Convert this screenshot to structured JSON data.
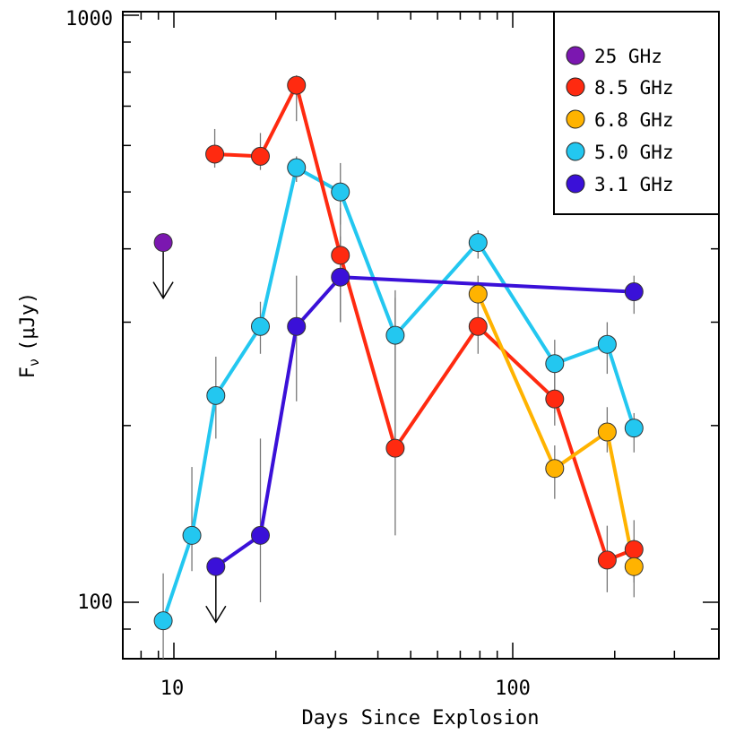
{
  "chart_data": {
    "type": "line",
    "xscale": "log",
    "yscale": "log",
    "xlabel": "Days Since Explosion",
    "ylabel_main": "F",
    "ylabel_sub": "ν",
    "ylabel_unit": "(μJy)",
    "xlim": [
      7.8,
      400
    ],
    "ylim": [
      85,
      1000
    ],
    "x_tick_labels": [
      {
        "value": 10,
        "label": "10"
      },
      {
        "value": 100,
        "label": "100"
      }
    ],
    "y_tick_labels": [
      {
        "value": 100,
        "label": "100"
      },
      {
        "value": 1000,
        "label": "1000"
      }
    ],
    "series": [
      {
        "name": "25 GHz",
        "legend_label": "25  GHz",
        "color": "#7b17b0",
        "connect": false,
        "points": [
          {
            "x": 9.3,
            "y": 410,
            "upper_limit": true
          }
        ]
      },
      {
        "name": "8.5 GHz",
        "legend_label": "8.5 GHz",
        "color": "#ff2a10",
        "connect": true,
        "points": [
          {
            "x": 13.2,
            "y": 580,
            "err_lo": 550,
            "err_hi": 640
          },
          {
            "x": 18.0,
            "y": 575,
            "err_lo": 545,
            "err_hi": 630
          },
          {
            "x": 23.0,
            "y": 760,
            "err_lo": 660,
            "err_hi": 790
          },
          {
            "x": 31.0,
            "y": 390,
            "err_lo": 300,
            "err_hi": 470
          },
          {
            "x": 45.0,
            "y": 183,
            "err_lo": 130,
            "err_hi": 340
          },
          {
            "x": 79.0,
            "y": 295,
            "err_lo": 265,
            "err_hi": 325
          },
          {
            "x": 133.0,
            "y": 222,
            "err_lo": 200,
            "err_hi": 248
          },
          {
            "x": 190.0,
            "y": 118,
            "err_lo": 104,
            "err_hi": 135
          },
          {
            "x": 228.0,
            "y": 123,
            "err_lo": 108,
            "err_hi": 138
          }
        ]
      },
      {
        "name": "6.8 GHz",
        "legend_label": "6.8 GHz",
        "color": "#ffb300",
        "connect": true,
        "points": [
          {
            "x": 79.0,
            "y": 335,
            "err_lo": 310,
            "err_hi": 360
          },
          {
            "x": 133.0,
            "y": 169,
            "err_lo": 150,
            "err_hi": 185
          },
          {
            "x": 190.0,
            "y": 195,
            "err_lo": 180,
            "err_hi": 215
          },
          {
            "x": 228.0,
            "y": 115,
            "err_lo": 102,
            "err_hi": 128
          }
        ]
      },
      {
        "name": "5.0 GHz",
        "legend_label": "5.0 GHz",
        "color": "#23c7f0",
        "connect": true,
        "points": [
          {
            "x": 9.3,
            "y": 93,
            "err_lo": 78,
            "err_hi": 112
          },
          {
            "x": 11.3,
            "y": 130,
            "err_lo": 113,
            "err_hi": 170
          },
          {
            "x": 13.3,
            "y": 225,
            "err_lo": 190,
            "err_hi": 262
          },
          {
            "x": 18.0,
            "y": 295,
            "err_lo": 265,
            "err_hi": 325
          },
          {
            "x": 23.0,
            "y": 550,
            "err_lo": 520,
            "err_hi": 575
          },
          {
            "x": 31.0,
            "y": 500,
            "err_lo": 440,
            "err_hi": 560
          },
          {
            "x": 45.0,
            "y": 285,
            "err_lo": 185,
            "err_hi": 330
          },
          {
            "x": 79.0,
            "y": 410,
            "err_lo": 385,
            "err_hi": 430
          },
          {
            "x": 133.0,
            "y": 255,
            "err_lo": 210,
            "err_hi": 280
          },
          {
            "x": 190.0,
            "y": 275,
            "err_lo": 245,
            "err_hi": 300
          },
          {
            "x": 228.0,
            "y": 198,
            "err_lo": 180,
            "err_hi": 210
          }
        ]
      },
      {
        "name": "3.1 GHz",
        "legend_label": "3.1 GHz",
        "color": "#3a10d8",
        "connect": true,
        "points": [
          {
            "x": 13.3,
            "y": 115,
            "upper_limit": true
          },
          {
            "x": 18.0,
            "y": 130,
            "err_lo": 100,
            "err_hi": 190
          },
          {
            "x": 23.0,
            "y": 295,
            "err_lo": 220,
            "err_hi": 360
          },
          {
            "x": 31.0,
            "y": 358,
            "err_lo": 300,
            "err_hi": 420
          },
          {
            "x": 228.0,
            "y": 338,
            "err_lo": 310,
            "err_hi": 360
          }
        ]
      }
    ],
    "legend_order": [
      "25 GHz",
      "8.5 GHz",
      "6.8 GHz",
      "5.0 GHz",
      "3.1 GHz"
    ],
    "legend_position": "top-right",
    "grid": false
  }
}
